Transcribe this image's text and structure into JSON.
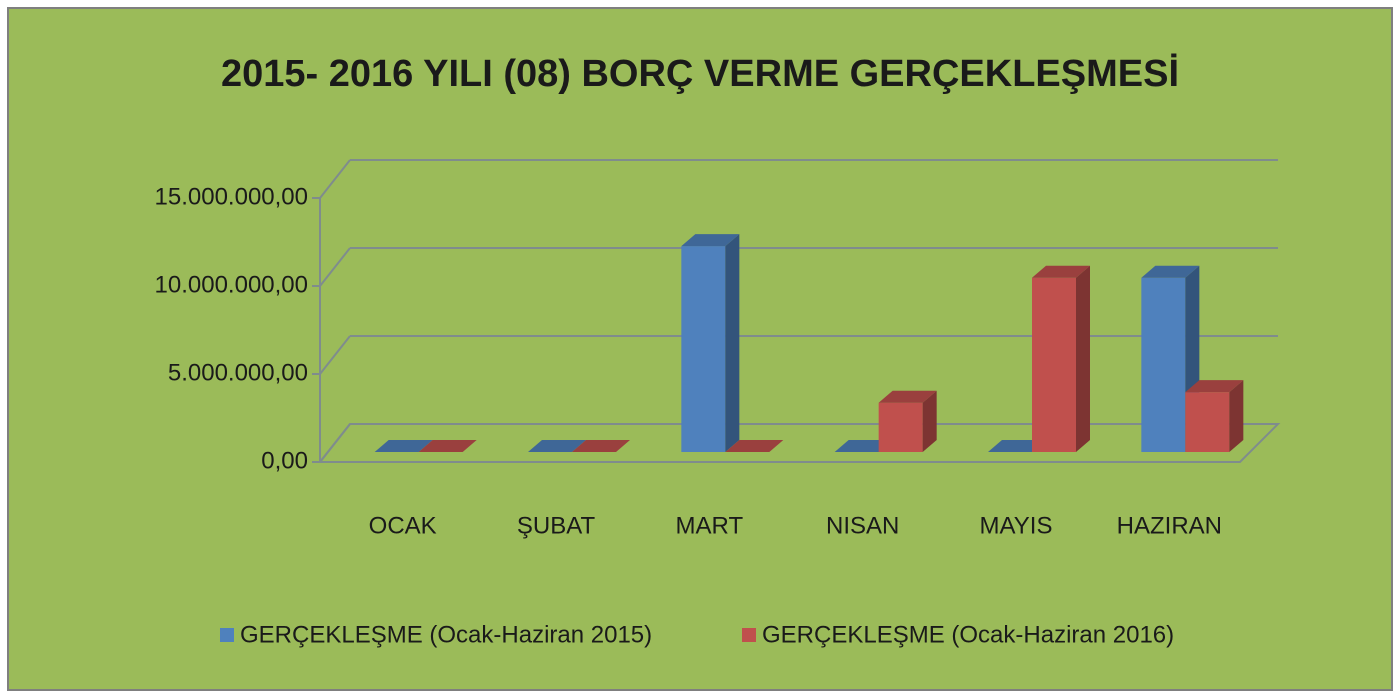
{
  "chart_data": {
    "type": "bar3d",
    "title": "2015- 2016 YILI  (08)  BORÇ VERME GERÇEKLEŞMESİ",
    "categories": [
      "OCAK",
      "ŞUBAT",
      "MART",
      "NISAN",
      "MAYIS",
      "HAZIRAN"
    ],
    "series": [
      {
        "name": "GERÇEKLEŞME (Ocak-Haziran 2015)",
        "color": "#4f81bd",
        "values": [
          0,
          0,
          11700000,
          0,
          0,
          9900000
        ]
      },
      {
        "name": "GERÇEKLEŞME (Ocak-Haziran 2016)",
        "color": "#c0504d",
        "values": [
          0,
          0,
          0,
          2800000,
          9900000,
          3400000
        ]
      }
    ],
    "ylim": [
      0,
      15000000
    ],
    "yticks": [
      {
        "value": 0,
        "label": "0,00"
      },
      {
        "value": 5000000,
        "label": "5.000.000,00"
      },
      {
        "value": 10000000,
        "label": "10.000.000,00"
      },
      {
        "value": 15000000,
        "label": "15.000.000,00"
      }
    ],
    "grid": true,
    "legend": "bottom",
    "background": "#9bbb59"
  }
}
